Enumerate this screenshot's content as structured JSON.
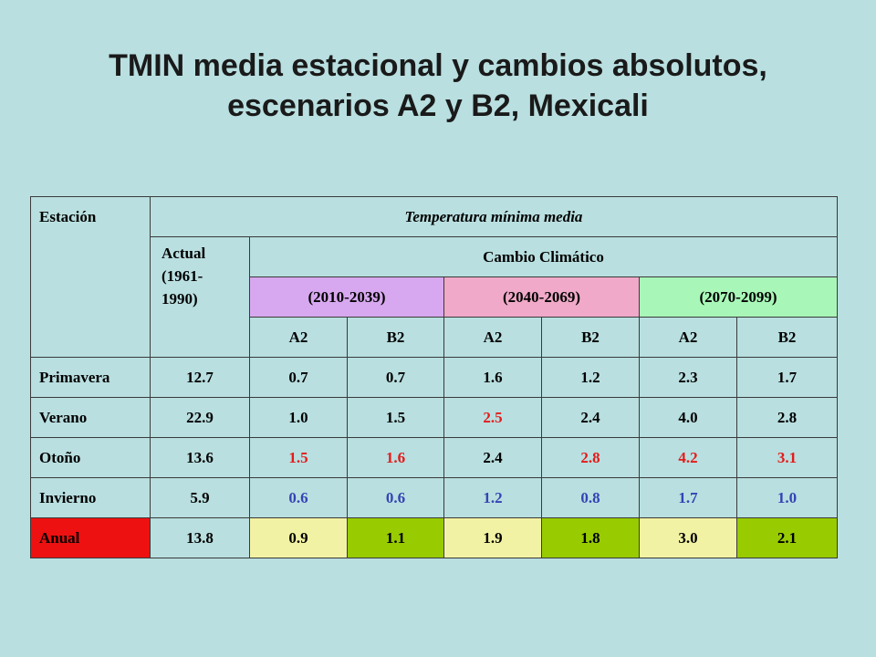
{
  "title": {
    "line1": "TMIN media estacional y cambios absolutos,",
    "line2": "escenarios A2 y B2, Mexicali"
  },
  "header": {
    "estacion": "Estación",
    "temp_min": "Temperatura mínima media",
    "actual_line1": "Actual",
    "actual_line2": "(1961-",
    "actual_line3": "1990)",
    "cambio": "Cambio Climático",
    "periods": [
      "(2010-2039)",
      "(2040-2069)",
      "(2070-2099)"
    ],
    "scenarios": [
      "A2",
      "B2",
      "A2",
      "B2",
      "A2",
      "B2"
    ]
  },
  "rows": [
    {
      "label": "Primavera",
      "actual": "12.7",
      "values": [
        "0.7",
        "0.7",
        "1.6",
        "1.2",
        "2.3",
        "1.7"
      ]
    },
    {
      "label": "Verano",
      "actual": "22.9",
      "values": [
        "1.0",
        "1.5",
        "2.5",
        "2.4",
        "4.0",
        "2.8"
      ]
    },
    {
      "label": "Otoño",
      "actual": "13.6",
      "values": [
        "1.5",
        "1.6",
        "2.4",
        "2.8",
        "4.2",
        "3.1"
      ]
    },
    {
      "label": "Invierno",
      "actual": "5.9",
      "values": [
        "0.6",
        "0.6",
        "1.2",
        "0.8",
        "1.7",
        "1.0"
      ]
    },
    {
      "label": "Anual",
      "actual": "13.8",
      "values": [
        "0.9",
        "1.1",
        "1.9",
        "1.8",
        "3.0",
        "2.1"
      ]
    }
  ],
  "colors": {
    "background": "#b9dfe0",
    "period1": "#d7a8ef",
    "period2": "#f0a9c8",
    "period3": "#a8f7b8",
    "red_text": "#e41b1b",
    "blue_text": "#3444b4",
    "anual_label": "#ee1111",
    "anual_light": "#f2f2a4",
    "anual_green": "#98cc00"
  }
}
